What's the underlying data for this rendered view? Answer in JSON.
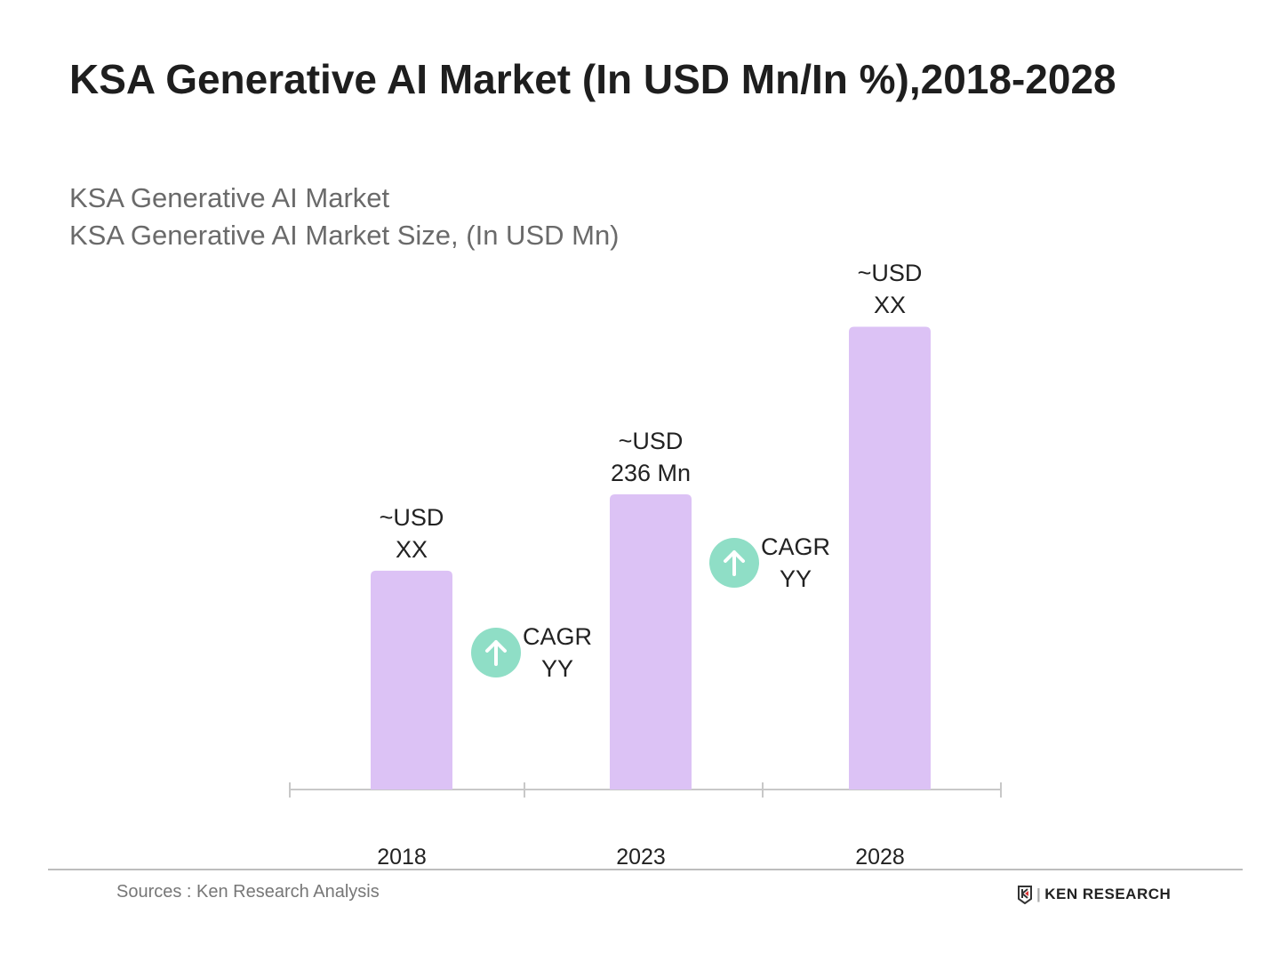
{
  "title": "KSA Generative AI Market (In USD Mn/In %),2018-2028",
  "subtitle1": "KSA Generative AI Market",
  "subtitle2": "KSA Generative AI Market Size, (In USD Mn)",
  "chart_data": {
    "type": "bar",
    "categories": [
      "2018",
      "2023",
      "2028"
    ],
    "values": [
      175,
      236,
      370
    ],
    "data_labels": [
      [
        "~USD",
        "XX"
      ],
      [
        "~USD",
        "236 Mn"
      ],
      [
        "~USD",
        "XX"
      ]
    ],
    "cagr": [
      {
        "label": "CAGR",
        "value": "YY"
      },
      {
        "label": "CAGR",
        "value": "YY"
      }
    ],
    "bar_color": "#dcc2f5",
    "cagr_icon_color": "#8fdec6",
    "grid": false,
    "legend": "none"
  },
  "footer": {
    "source": "Sources : Ken Research Analysis",
    "logo_text": "KEN RESEARCH"
  }
}
